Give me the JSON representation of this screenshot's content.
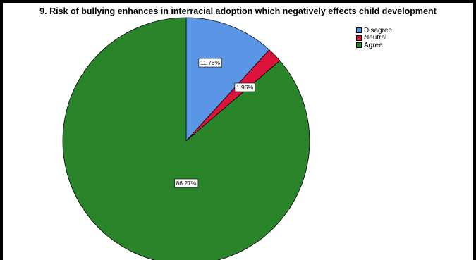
{
  "chart_data": {
    "type": "pie",
    "title": "9. Risk of bullying enhances in interracial adoption which negatively effects child development",
    "slices": [
      {
        "name": "Disagree",
        "value": 11.76,
        "label": "11.76%",
        "color": "#5a95e6"
      },
      {
        "name": "Neutral",
        "value": 1.96,
        "label": "1.96%",
        "color": "#dc143c"
      },
      {
        "name": "Agree",
        "value": 86.27,
        "label": "86.27%",
        "color": "#2a852a"
      }
    ],
    "legend_position": "top-right"
  }
}
